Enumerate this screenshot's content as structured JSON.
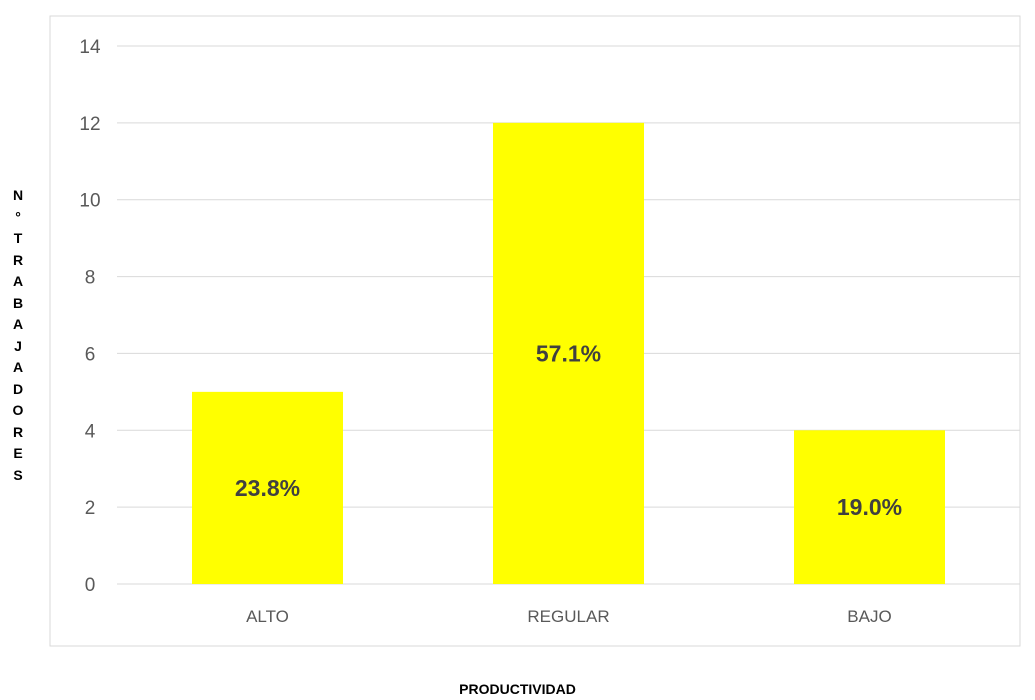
{
  "chart_data": {
    "type": "bar",
    "categories": [
      "ALTO",
      "REGULAR",
      "BAJO"
    ],
    "values": [
      5,
      12,
      4
    ],
    "data_labels": [
      "23.8%",
      "57.1%",
      "19.0%"
    ],
    "title": "",
    "xlabel": "PRODUCTIVIDAD",
    "ylabel": "N° TRABAJADORES",
    "ylim": [
      0,
      14
    ],
    "yticks": [
      "0",
      "2",
      "4",
      "6",
      "8",
      "10",
      "12",
      "14"
    ],
    "grid": true,
    "legend": "none",
    "colors": {
      "bar": "#FFFF00",
      "grid": "#D9D9D9",
      "frame": "#D9D9D9",
      "text": "#595959"
    }
  }
}
